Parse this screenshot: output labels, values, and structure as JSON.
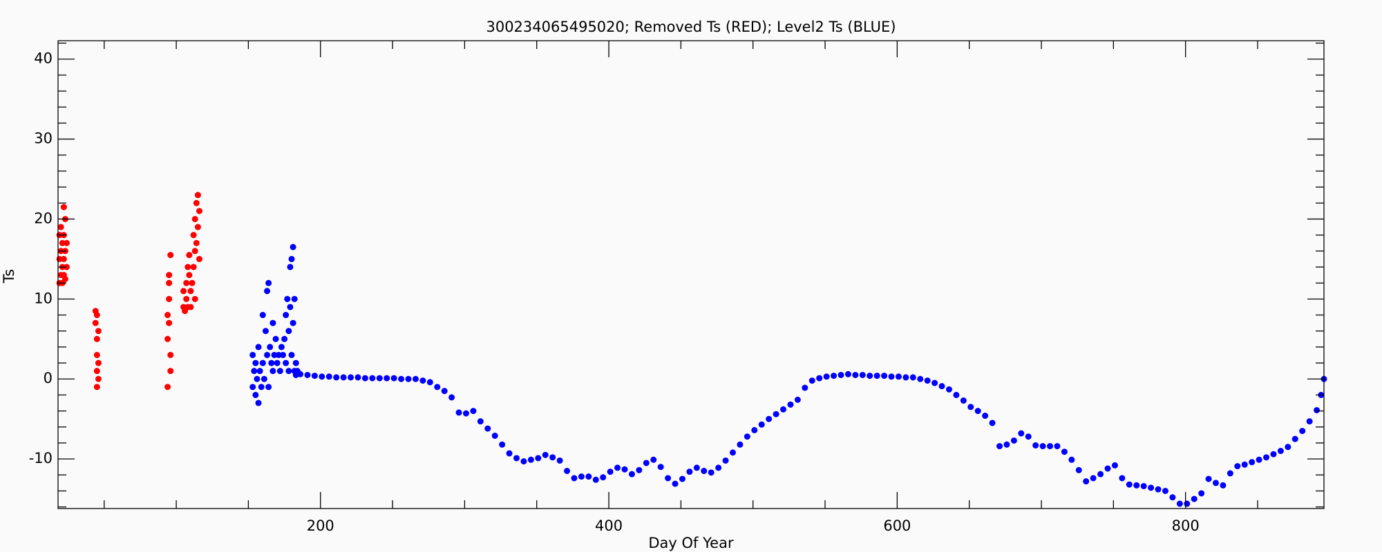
{
  "chart_data": {
    "type": "scatter",
    "title": "300234065495020; Removed Ts (RED); Level2 Ts (BLUE)",
    "x_label": "Day Of Year",
    "y_label": "Ts",
    "xlim": [
      18,
      896
    ],
    "ylim": [
      -16.2,
      42.3
    ],
    "xticks": [
      200,
      400,
      600,
      800
    ],
    "yticks": [
      -10,
      0,
      10,
      20,
      30,
      40
    ],
    "xminorticks": [
      50,
      100,
      150,
      250,
      300,
      350,
      450,
      500,
      550,
      650,
      700,
      750,
      850
    ],
    "yminorticks": [
      -16,
      -14,
      -12,
      -8,
      -6,
      -4,
      -2,
      2,
      4,
      6,
      8,
      12,
      14,
      16,
      18,
      22,
      24,
      26,
      28,
      32,
      34,
      36,
      38,
      42
    ],
    "series": [
      {
        "color": "#ff0000",
        "x": [
          19,
          19,
          19,
          20,
          20,
          20,
          21,
          21,
          21,
          22,
          22,
          22,
          22,
          23,
          23,
          23,
          24,
          24,
          44,
          44,
          45,
          45,
          45,
          45,
          46,
          46,
          46,
          45,
          94,
          94,
          95,
          95,
          95,
          96,
          96,
          96,
          95,
          94,
          105,
          105,
          106,
          107,
          107,
          108,
          108,
          109,
          109,
          110,
          111,
          112,
          112,
          113,
          113,
          114,
          114,
          115,
          115,
          116,
          116,
          113,
          110
        ],
        "values": [
          12,
          15,
          18,
          13,
          16,
          19,
          12,
          14,
          17,
          13,
          15,
          18,
          21.5,
          12.5,
          16,
          20,
          14,
          17,
          8.5,
          7,
          5,
          3,
          1,
          -1,
          6,
          2,
          0,
          8,
          -1,
          5,
          7,
          10,
          13,
          15.5,
          1,
          3,
          12,
          8,
          9,
          11,
          8.5,
          10,
          12,
          14,
          9,
          13,
          15.5,
          11,
          12,
          14,
          18,
          16,
          20,
          17,
          22,
          19,
          23,
          15,
          21,
          10,
          9
        ]
      },
      {
        "color": "#0000ff",
        "x": [
          153,
          153,
          154,
          155,
          155,
          156,
          157,
          157,
          158,
          159,
          160,
          160,
          161,
          162,
          163,
          163,
          164,
          164,
          165,
          166,
          167,
          167,
          168,
          169,
          170,
          171,
          172,
          173,
          174,
          175,
          176,
          176,
          177,
          178,
          178,
          179,
          179,
          180,
          180,
          181,
          181,
          182,
          182,
          183,
          183,
          184,
          186,
          191,
          196,
          201,
          206,
          211,
          216,
          221,
          226,
          231,
          236,
          241,
          246,
          251,
          256,
          261,
          266,
          271,
          276,
          281,
          286,
          291,
          296,
          301,
          306,
          311,
          316,
          321,
          326,
          331,
          336,
          341,
          346,
          351,
          356,
          361,
          366,
          371,
          376,
          381,
          386,
          391,
          396,
          401,
          406,
          411,
          416,
          421,
          426,
          431,
          436,
          441,
          446,
          451,
          456,
          461,
          466,
          471,
          476,
          481,
          486,
          491,
          496,
          501,
          506,
          511,
          516,
          521,
          526,
          531,
          536,
          541,
          546,
          551,
          556,
          561,
          566,
          571,
          576,
          581,
          586,
          591,
          596,
          601,
          606,
          611,
          616,
          621,
          626,
          631,
          636,
          641,
          646,
          651,
          656,
          661,
          666,
          671,
          676,
          681,
          686,
          691,
          696,
          701,
          706,
          711,
          716,
          721,
          726,
          731,
          736,
          741,
          746,
          751,
          756,
          761,
          766,
          771,
          776,
          781,
          786,
          791,
          796,
          801,
          806,
          811,
          816,
          821,
          826,
          831,
          836,
          841,
          846,
          851,
          856,
          861,
          866,
          871,
          876,
          881,
          886,
          891,
          894,
          896
        ],
        "values": [
          -1,
          3,
          1,
          -2,
          2,
          0,
          -3,
          4,
          1,
          -1,
          8,
          2,
          0,
          6,
          3,
          11,
          12,
          -1,
          4,
          2,
          7,
          1,
          3,
          5,
          2,
          3,
          1,
          4,
          3,
          5,
          8,
          2,
          10,
          6,
          1,
          9,
          14,
          15,
          3,
          16.5,
          7,
          10,
          1,
          2,
          0.5,
          1,
          0.6,
          0.5,
          0.4,
          0.3,
          0.3,
          0.2,
          0.2,
          0.2,
          0.2,
          0.1,
          0.1,
          0.1,
          0.1,
          0.1,
          0,
          0,
          0,
          -0.2,
          -0.4,
          -1,
          -1.5,
          -2.3,
          -4.2,
          -4.3,
          -4,
          -5.3,
          -6.2,
          -7.1,
          -8.2,
          -9.3,
          -9.9,
          -10.3,
          -10.1,
          -9.9,
          -9.5,
          -9.8,
          -10.2,
          -11.5,
          -12.4,
          -12.2,
          -12.2,
          -12.6,
          -12.3,
          -11.6,
          -11.1,
          -11.3,
          -11.9,
          -11.4,
          -10.5,
          -10.1,
          -11,
          -12.4,
          -13.1,
          -12.5,
          -11.6,
          -11.1,
          -11.5,
          -11.7,
          -11.1,
          -10.2,
          -9.2,
          -8.2,
          -7.2,
          -6.4,
          -5.7,
          -5,
          -4.4,
          -3.8,
          -3.2,
          -2.6,
          -1.1,
          -0.2,
          0.1,
          0.3,
          0.4,
          0.5,
          0.6,
          0.5,
          0.5,
          0.4,
          0.4,
          0.4,
          0.3,
          0.3,
          0.2,
          0.2,
          0,
          -0.2,
          -0.5,
          -0.9,
          -1.3,
          -2,
          -2.7,
          -3.5,
          -4,
          -4.6,
          -5.5,
          -8.4,
          -8.2,
          -7.7,
          -6.8,
          -7.2,
          -8.3,
          -8.4,
          -8.4,
          -8.4,
          -9.1,
          -10.1,
          -11.4,
          -12.8,
          -12.4,
          -11.9,
          -11.2,
          -10.8,
          -12.4,
          -13.2,
          -13.3,
          -13.4,
          -13.6,
          -13.8,
          -14,
          -14.8,
          -15.6,
          -15.6,
          -15,
          -14.3,
          -12.5,
          -13,
          -13.3,
          -11.8,
          -10.9,
          -10.7,
          -10.4,
          -10.1,
          -9.8,
          -9.4,
          -9,
          -8.5,
          -7.5,
          -6.5,
          -5.3,
          -3.9,
          -2,
          0
        ]
      }
    ]
  }
}
